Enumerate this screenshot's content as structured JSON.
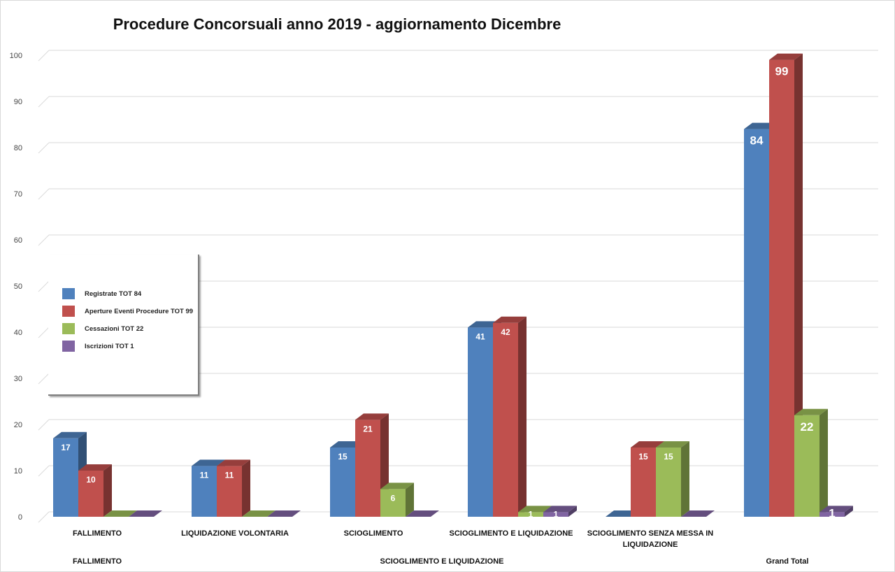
{
  "chart_data": {
    "type": "bar",
    "title": "Procedure Concorsuali anno 2019 - aggiornamento Dicembre",
    "ylim": [
      0,
      100
    ],
    "yticks": [
      0,
      10,
      20,
      30,
      40,
      50,
      60,
      70,
      80,
      90,
      100
    ],
    "grid": true,
    "legend_position": "left",
    "categories": [
      "FALLIMENTO",
      "LIQUIDAZIONE VOLONTARIA",
      "SCIOGLIMENTO",
      "SCIOGLIMENTO E LIQUIDAZIONE",
      "SCIOGLIMENTO SENZA MESSA IN LIQUIDAZIONE",
      "Grand Total"
    ],
    "category_lines": [
      [
        "FALLIMENTO"
      ],
      [
        "LIQUIDAZIONE VOLONTARIA"
      ],
      [
        "SCIOGLIMENTO"
      ],
      [
        "SCIOGLIMENTO E LIQUIDAZIONE"
      ],
      [
        "SCIOGLIMENTO SENZA MESSA IN",
        "LIQUIDAZIONE"
      ],
      []
    ],
    "group_labels": [
      {
        "label": "FALLIMENTO",
        "span": [
          0,
          0
        ]
      },
      {
        "label": "SCIOGLIMENTO E LIQUIDAZIONE",
        "span": [
          1,
          4
        ]
      },
      {
        "label": "Grand Total",
        "span": [
          5,
          5
        ]
      }
    ],
    "series": [
      {
        "name": "Registrate TOT 84",
        "color": "#4f81bd",
        "values": [
          17,
          11,
          15,
          41,
          0,
          84
        ]
      },
      {
        "name": "Aperture Eventi Procedure TOT 99",
        "color": "#c0504d",
        "values": [
          10,
          11,
          21,
          42,
          15,
          99
        ]
      },
      {
        "name": "Cessazioni TOT 22",
        "color": "#9bbb59",
        "values": [
          0,
          0,
          6,
          1,
          15,
          22
        ]
      },
      {
        "name": "Iscrizioni TOT 1",
        "color": "#8064a2",
        "values": [
          0,
          0,
          0,
          1,
          0,
          1
        ]
      }
    ]
  }
}
